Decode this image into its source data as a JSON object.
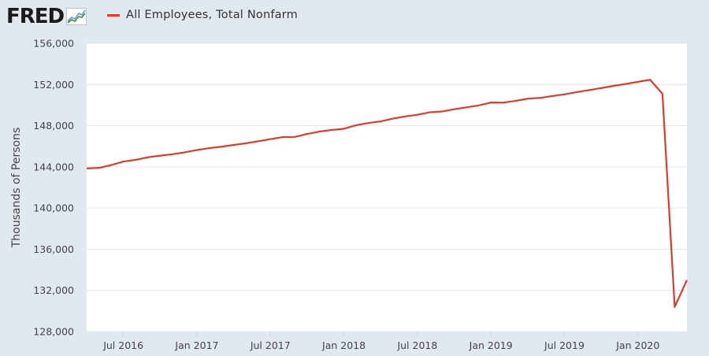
{
  "header": {
    "logo_text": "FRED",
    "legend_label": "All Employees, Total Nonfarm"
  },
  "colors": {
    "background": "#e1e9f0",
    "plot_bg": "#ffffff",
    "series": "#dd3b2c",
    "grid": "#e6e6e6",
    "axis_text": "#444444"
  },
  "chart_data": {
    "type": "line",
    "title": "",
    "xlabel": "",
    "ylabel": "Thousands of Persons",
    "ylim": [
      128000,
      156000
    ],
    "xlim": [
      "2016-04",
      "2020-05"
    ],
    "y_ticks": [
      {
        "value": 128000,
        "label": "128,000"
      },
      {
        "value": 132000,
        "label": "132,000"
      },
      {
        "value": 136000,
        "label": "136,000"
      },
      {
        "value": 140000,
        "label": "140,000"
      },
      {
        "value": 144000,
        "label": "144,000"
      },
      {
        "value": 148000,
        "label": "148,000"
      },
      {
        "value": 152000,
        "label": "152,000"
      },
      {
        "value": 156000,
        "label": "156,000"
      }
    ],
    "x_ticks": [
      {
        "value": "2016-07",
        "label": "Jul 2016"
      },
      {
        "value": "2017-01",
        "label": "Jan 2017"
      },
      {
        "value": "2017-07",
        "label": "Jul 2017"
      },
      {
        "value": "2018-01",
        "label": "Jan 2018"
      },
      {
        "value": "2018-07",
        "label": "Jul 2018"
      },
      {
        "value": "2019-01",
        "label": "Jan 2019"
      },
      {
        "value": "2019-07",
        "label": "Jul 2019"
      },
      {
        "value": "2020-01",
        "label": "Jan 2020"
      }
    ],
    "grid": true,
    "series": [
      {
        "name": "All Employees, Total Nonfarm",
        "x": [
          "2016-04",
          "2016-05",
          "2016-06",
          "2016-07",
          "2016-08",
          "2016-09",
          "2016-10",
          "2016-11",
          "2016-12",
          "2017-01",
          "2017-02",
          "2017-03",
          "2017-04",
          "2017-05",
          "2017-06",
          "2017-07",
          "2017-08",
          "2017-09",
          "2017-10",
          "2017-11",
          "2017-12",
          "2018-01",
          "2018-02",
          "2018-03",
          "2018-04",
          "2018-05",
          "2018-06",
          "2018-07",
          "2018-08",
          "2018-09",
          "2018-10",
          "2018-11",
          "2018-12",
          "2019-01",
          "2019-02",
          "2019-03",
          "2019-04",
          "2019-05",
          "2019-06",
          "2019-07",
          "2019-08",
          "2019-09",
          "2019-10",
          "2019-11",
          "2019-12",
          "2020-01",
          "2020-02",
          "2020-03",
          "2020-04",
          "2020-05"
        ],
        "values": [
          143850,
          143900,
          144170,
          144520,
          144680,
          144930,
          145090,
          145230,
          145410,
          145640,
          145820,
          145960,
          146130,
          146290,
          146490,
          146690,
          146890,
          146910,
          147200,
          147430,
          147590,
          147700,
          148050,
          148260,
          148420,
          148690,
          148900,
          149060,
          149300,
          149380,
          149600,
          149780,
          149970,
          150250,
          150240,
          150410,
          150620,
          150700,
          150880,
          151040,
          151260,
          151450,
          151650,
          151870,
          152050,
          152260,
          152460,
          151100,
          130400,
          133000
        ]
      }
    ]
  }
}
